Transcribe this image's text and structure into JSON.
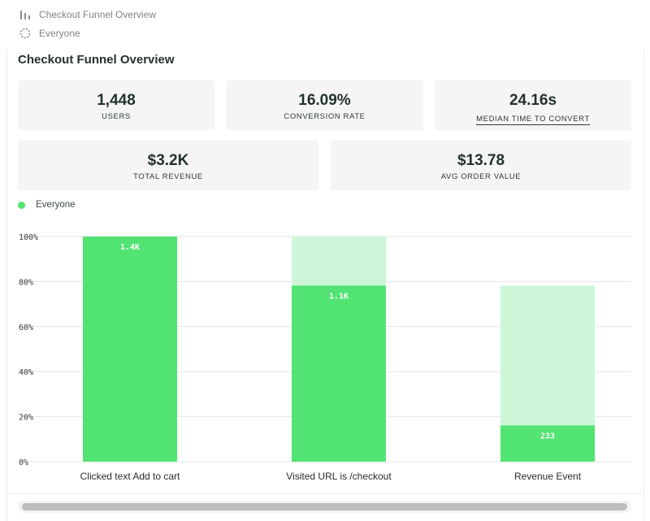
{
  "breadcrumbs": {
    "insight_label": "Checkout Funnel Overview",
    "segment_label": "Everyone"
  },
  "card": {
    "title": "Checkout Funnel Overview"
  },
  "stats": {
    "users": {
      "value": "1,448",
      "label": "USERS"
    },
    "conversion": {
      "value": "16.09%",
      "label": "CONVERSION RATE"
    },
    "median_time": {
      "value": "24.16s",
      "label": "MEDIAN TIME TO CONVERT"
    },
    "revenue": {
      "value": "$3.2K",
      "label": "TOTAL REVENUE"
    },
    "aov": {
      "value": "$13.78",
      "label": "AVG ORDER VALUE"
    }
  },
  "legend": {
    "label": "Everyone",
    "color": "#52e472"
  },
  "colors": {
    "bar": "#52e472",
    "bar_ghost": "#cdf6d8",
    "grid": "#e6e6e6",
    "axis_text": "#3a3a3a"
  },
  "chart_data": {
    "type": "bar",
    "title": "Checkout Funnel Overview",
    "xlabel": "",
    "ylabel": "",
    "ylim": [
      0,
      100
    ],
    "yticks": [
      "0%",
      "20%",
      "40%",
      "60%",
      "80%",
      "100%"
    ],
    "ytick_values": [
      0,
      20,
      40,
      60,
      80,
      100
    ],
    "categories": [
      "Clicked text Add to cart",
      "Visited URL is /checkout",
      "Revenue Event"
    ],
    "series": [
      {
        "name": "Everyone",
        "values": [
          100,
          78.2,
          16.09
        ],
        "labels": [
          "1.4K",
          "1.1K",
          "233"
        ],
        "previous_step_values": [
          100,
          100,
          78.2
        ]
      }
    ]
  }
}
